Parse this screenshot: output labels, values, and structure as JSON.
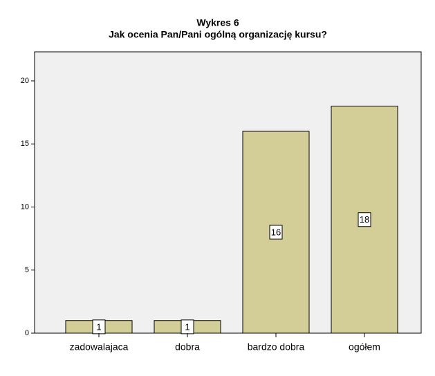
{
  "chart_data": {
    "type": "bar",
    "title": "Wykres 6",
    "subtitle": "Jak ocenia Pan/Pani ogólną organizację kursu?",
    "categories": [
      "zadowalajaca",
      "dobra",
      "bardzo dobra",
      "ogółem"
    ],
    "values": [
      1,
      1,
      16,
      18
    ],
    "color": "#d3ce97",
    "ylim": [
      0,
      22.3
    ],
    "yticks": [
      0,
      5,
      10,
      15,
      20
    ],
    "grid": false
  }
}
